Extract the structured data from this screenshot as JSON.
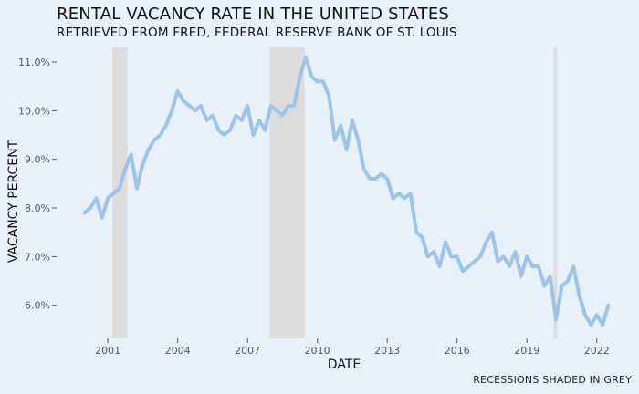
{
  "chart_data": {
    "type": "line",
    "title": "RENTAL VACANCY RATE IN THE UNITED STATES",
    "subtitle": "RETRIEVED FROM FRED, FEDERAL RESERVE BANK OF ST. LOUIS",
    "xlabel": "DATE",
    "ylabel": "VACANCY PERCENT",
    "caption": "RECESSIONS SHADED IN GREY",
    "xlim": [
      1998.8,
      2023.5
    ],
    "ylim": [
      5.32,
      11.3
    ],
    "x_ticks": [
      2001,
      2004,
      2007,
      2010,
      2013,
      2016,
      2019,
      2022
    ],
    "x_tick_labels": [
      "2001",
      "2004",
      "2007",
      "2010",
      "2013",
      "2016",
      "2019",
      "2022"
    ],
    "y_ticks": [
      6.0,
      7.0,
      8.0,
      9.0,
      10.0,
      11.0
    ],
    "y_tick_labels": [
      "6.0%",
      "7.0%",
      "8.0%",
      "9.0%",
      "10.0%",
      "11.0%"
    ],
    "grid": false,
    "colors": {
      "line": "#9fc3e7",
      "recession": "#dcdcdc",
      "background": "#e8f1fa"
    },
    "recessions": [
      {
        "start": 2001.2,
        "end": 2001.85
      },
      {
        "start": 2007.95,
        "end": 2009.45
      },
      {
        "start": 2020.15,
        "end": 2020.3
      }
    ],
    "series": [
      {
        "x": [
          2000.0,
          2000.25,
          2000.5,
          2000.75,
          2001.0,
          2001.25,
          2001.5,
          2001.75,
          2002.0,
          2002.25,
          2002.5,
          2002.75,
          2003.0,
          2003.25,
          2003.5,
          2003.75,
          2004.0,
          2004.25,
          2004.5,
          2004.75,
          2005.0,
          2005.25,
          2005.5,
          2005.75,
          2006.0,
          2006.25,
          2006.5,
          2006.75,
          2007.0,
          2007.25,
          2007.5,
          2007.75,
          2008.0,
          2008.25,
          2008.5,
          2008.75,
          2009.0,
          2009.25,
          2009.5,
          2009.75,
          2010.0,
          2010.25,
          2010.5,
          2010.75,
          2011.0,
          2011.25,
          2011.5,
          2011.75,
          2012.0,
          2012.25,
          2012.5,
          2012.75,
          2013.0,
          2013.25,
          2013.5,
          2013.75,
          2014.0,
          2014.25,
          2014.5,
          2014.75,
          2015.0,
          2015.25,
          2015.5,
          2015.75,
          2016.0,
          2016.25,
          2016.5,
          2016.75,
          2017.0,
          2017.25,
          2017.5,
          2017.75,
          2018.0,
          2018.25,
          2018.5,
          2018.75,
          2019.0,
          2019.25,
          2019.5,
          2019.75,
          2020.0,
          2020.25,
          2020.5,
          2020.75,
          2021.0,
          2021.25,
          2021.5,
          2021.75,
          2022.0,
          2022.25,
          2022.5
        ],
        "values": [
          7.9,
          8.0,
          8.2,
          7.8,
          8.2,
          8.3,
          8.4,
          8.8,
          9.1,
          8.4,
          8.9,
          9.2,
          9.4,
          9.5,
          9.7,
          10.0,
          10.4,
          10.2,
          10.1,
          10.0,
          10.1,
          9.8,
          9.9,
          9.6,
          9.5,
          9.6,
          9.9,
          9.8,
          10.1,
          9.5,
          9.8,
          9.6,
          10.1,
          10.0,
          9.9,
          10.1,
          10.1,
          10.7,
          11.1,
          10.7,
          10.6,
          10.6,
          10.3,
          9.4,
          9.7,
          9.2,
          9.8,
          9.4,
          8.8,
          8.6,
          8.6,
          8.7,
          8.6,
          8.2,
          8.3,
          8.2,
          8.3,
          7.5,
          7.4,
          7.0,
          7.1,
          6.8,
          7.3,
          7.0,
          7.0,
          6.7,
          6.8,
          6.9,
          7.0,
          7.3,
          7.5,
          6.9,
          7.0,
          6.8,
          7.1,
          6.6,
          7.0,
          6.8,
          6.8,
          6.4,
          6.6,
          5.7,
          6.4,
          6.5,
          6.8,
          6.2,
          5.8,
          5.6,
          5.8,
          5.6,
          6.0
        ]
      }
    ]
  }
}
